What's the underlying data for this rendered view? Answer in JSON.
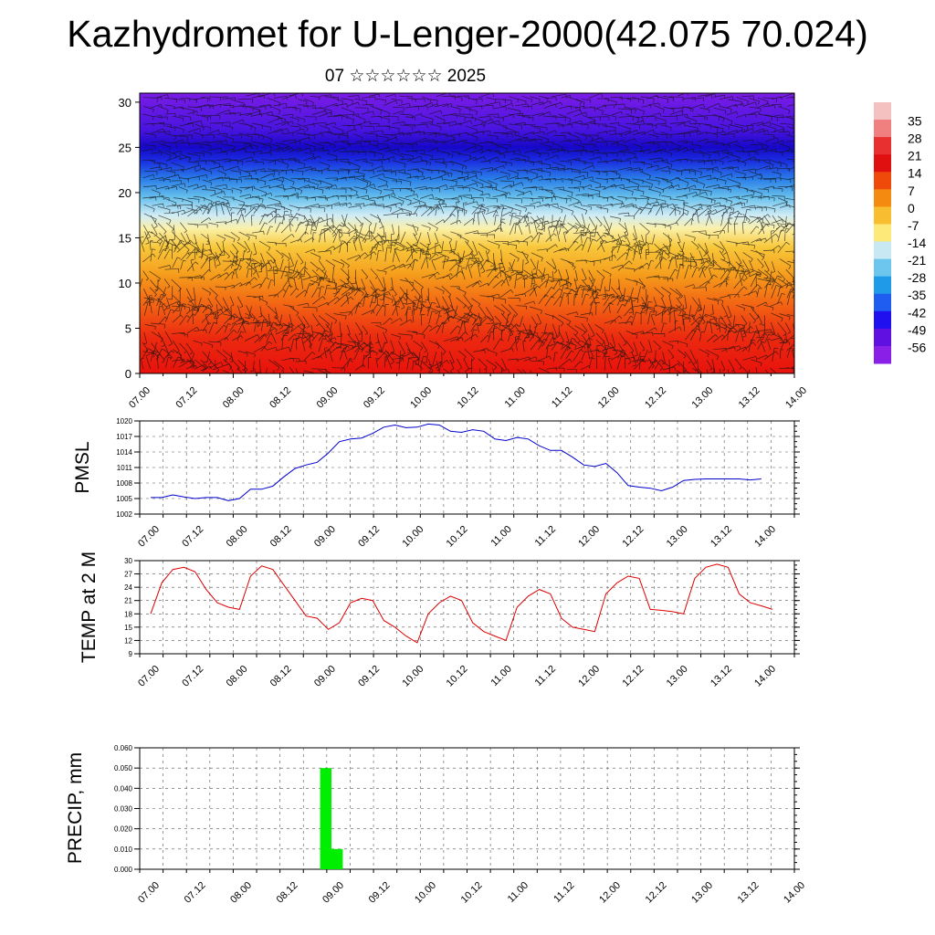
{
  "title": "Kazhydromet for U-Lenger-2000(42.075 70.024)",
  "subtitle": "07 ☆☆☆☆☆☆ 2025",
  "time_labels": [
    "07.00",
    "07.12",
    "08.00",
    "08.12",
    "09.00",
    "09.12",
    "10.00",
    "10.12",
    "11.00",
    "11.12",
    "12.00",
    "12.12",
    "13.00",
    "13.12",
    "14.00"
  ],
  "chart_data": [
    {
      "type": "heatmap",
      "xlabel": "",
      "ylabel": "",
      "yticks": [
        0,
        5,
        10,
        15,
        20,
        25,
        30
      ],
      "ylim": [
        0,
        31
      ],
      "colorbar": {
        "labels": [
          "35",
          "28",
          "21",
          "14",
          "7",
          "0",
          "-7",
          "-14",
          "-21",
          "-28",
          "-35",
          "-42",
          "-49",
          "-56"
        ],
        "colors": [
          "#f5c0c0",
          "#f08080",
          "#e83030",
          "#e01010",
          "#f04a0a",
          "#f58a10",
          "#f8bd30",
          "#fde87a",
          "#c8e8f4",
          "#6cc6ee",
          "#1e9ae8",
          "#1f5cf0",
          "#2010f0",
          "#6010e0",
          "#8a20e8"
        ]
      },
      "profile_colors": [
        {
          "level": 0,
          "color": "#e8120c"
        },
        {
          "level": 4,
          "color": "#ec2a10"
        },
        {
          "level": 8,
          "color": "#f36a14"
        },
        {
          "level": 11,
          "color": "#f59e1c"
        },
        {
          "level": 14,
          "color": "#f8c83c"
        },
        {
          "level": 16,
          "color": "#fbf0a8"
        },
        {
          "level": 17.5,
          "color": "#d0ecf6"
        },
        {
          "level": 19.5,
          "color": "#66c0ec"
        },
        {
          "level": 21.5,
          "color": "#2a7ee8"
        },
        {
          "level": 23.5,
          "color": "#1a2ee0"
        },
        {
          "level": 25,
          "color": "#1608c8"
        },
        {
          "level": 27,
          "color": "#4a14e0"
        },
        {
          "level": 31,
          "color": "#7a1ce6"
        }
      ]
    },
    {
      "type": "line",
      "ylabel": "PMSL",
      "yticks": [
        1002,
        1005,
        1008,
        1011,
        1014,
        1017,
        1020
      ],
      "ylim": [
        1002,
        1020
      ],
      "color": "#0000cc",
      "x_start": 0.0,
      "x_step": 0.125,
      "values": [
        1005.2,
        1005.2,
        1005.7,
        1005.3,
        1005.0,
        1005.2,
        1005.2,
        1004.6,
        1005.0,
        1006.8,
        1006.8,
        1007.4,
        1009.2,
        1010.8,
        1011.5,
        1012.0,
        1013.8,
        1016.0,
        1016.5,
        1016.7,
        1017.6,
        1018.8,
        1019.2,
        1018.7,
        1018.8,
        1019.4,
        1019.2,
        1018.0,
        1017.8,
        1018.3,
        1018.0,
        1016.5,
        1016.2,
        1016.8,
        1016.5,
        1015.2,
        1014.3,
        1014.3,
        1013.0,
        1011.5,
        1011.2,
        1011.8,
        1010.0,
        1007.5,
        1007.2,
        1007.0,
        1006.5,
        1007.2,
        1008.5,
        1008.7,
        1008.8,
        1008.8,
        1008.8,
        1008.8,
        1008.6,
        1008.8
      ]
    },
    {
      "type": "line",
      "ylabel": "TEMP at 2 M",
      "yticks": [
        9,
        12,
        15,
        18,
        21,
        24,
        27,
        30
      ],
      "ylim": [
        9,
        30
      ],
      "color": "#dd0000",
      "x_start": 0.0,
      "x_step": 0.125,
      "values": [
        18.0,
        25.0,
        28.0,
        28.5,
        27.5,
        23.5,
        20.5,
        19.5,
        19.0,
        26.5,
        28.8,
        28.0,
        24.5,
        21.0,
        17.5,
        17.0,
        14.5,
        16.0,
        20.5,
        21.5,
        21.0,
        16.5,
        15.0,
        13.0,
        11.5,
        18.0,
        20.5,
        22.0,
        21.0,
        16.0,
        14.0,
        13.0,
        12.0,
        19.5,
        22.0,
        23.5,
        22.5,
        17.0,
        15.0,
        14.5,
        14.0,
        22.5,
        25.0,
        26.5,
        26.0,
        19.0,
        18.8,
        18.5,
        18.0,
        26.0,
        28.5,
        29.2,
        28.5,
        22.5,
        20.5,
        19.8,
        19.0
      ]
    },
    {
      "type": "bar",
      "ylabel": "PRECIP, mm",
      "yticks": [
        "0.000",
        "0.010",
        "0.020",
        "0.030",
        "0.040",
        "0.050",
        "0.060"
      ],
      "ylim": [
        0,
        0.06
      ],
      "color": "#00ee00",
      "bars": [
        {
          "x0": 1.875,
          "x1": 2.0,
          "value": 0.05
        },
        {
          "x0": 2.0,
          "x1": 2.125,
          "value": 0.01
        }
      ]
    }
  ]
}
